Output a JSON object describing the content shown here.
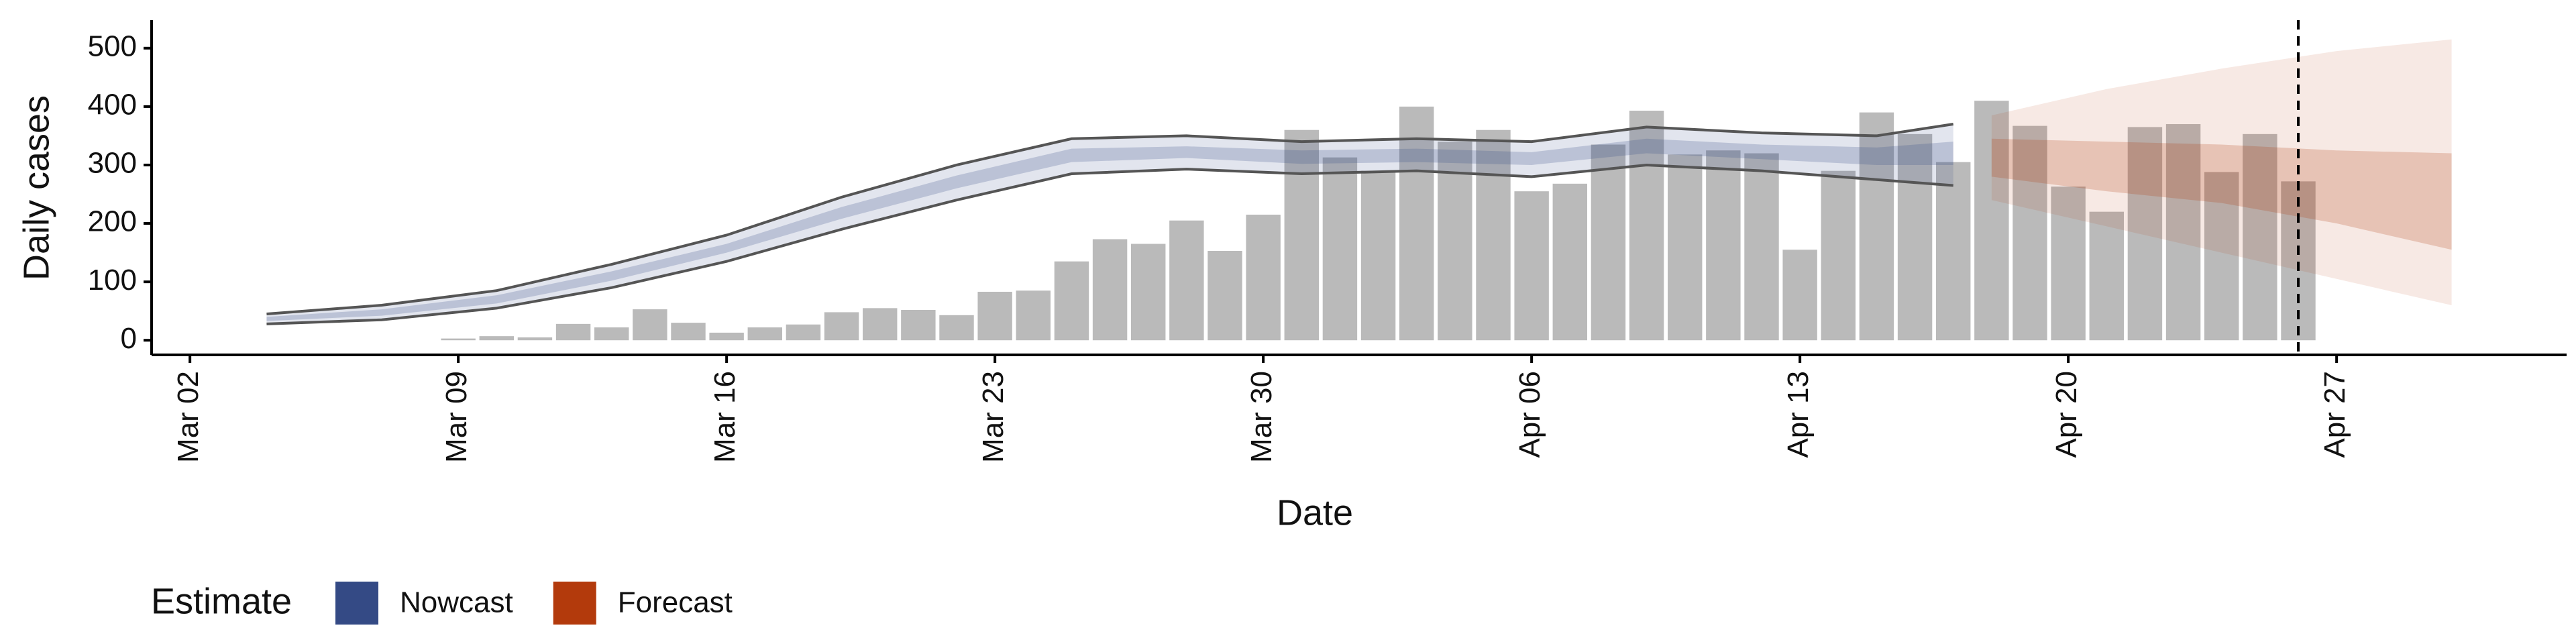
{
  "chart_data": {
    "type": "bar",
    "x_label": "Date",
    "y_label": "Daily cases",
    "xlim": [
      "03-01",
      "05-03"
    ],
    "xticks": [
      {
        "value": "03-02",
        "label": "Mar 02"
      },
      {
        "value": "03-09",
        "label": "Mar 09"
      },
      {
        "value": "03-16",
        "label": "Mar 16"
      },
      {
        "value": "03-23",
        "label": "Mar 23"
      },
      {
        "value": "03-30",
        "label": "Mar 30"
      },
      {
        "value": "04-06",
        "label": "Apr 06"
      },
      {
        "value": "04-13",
        "label": "Apr 13"
      },
      {
        "value": "04-20",
        "label": "Apr 20"
      },
      {
        "value": "04-27",
        "label": "Apr 27"
      }
    ],
    "ylim": [
      -25,
      548
    ],
    "yticks": [
      0,
      100,
      200,
      300,
      400,
      500
    ],
    "bar_color": "#bababa",
    "x": [
      "03-09",
      "03-10",
      "03-11",
      "03-12",
      "03-13",
      "03-14",
      "03-15",
      "03-16",
      "03-17",
      "03-18",
      "03-19",
      "03-20",
      "03-21",
      "03-22",
      "03-23",
      "03-24",
      "03-25",
      "03-26",
      "03-27",
      "03-28",
      "03-29",
      "03-30",
      "03-31",
      "04-01",
      "04-02",
      "04-03",
      "04-04",
      "04-05",
      "04-06",
      "04-07",
      "04-08",
      "04-09",
      "04-10",
      "04-11",
      "04-12",
      "04-13",
      "04-14",
      "04-15",
      "04-16",
      "04-17",
      "04-18",
      "04-19",
      "04-20",
      "04-21",
      "04-22",
      "04-23",
      "04-24",
      "04-25",
      "04-26"
    ],
    "values": [
      3,
      7,
      5,
      28,
      22,
      53,
      30,
      13,
      22,
      27,
      48,
      55,
      52,
      43,
      83,
      85,
      135,
      173,
      165,
      205,
      153,
      215,
      360,
      313,
      290,
      400,
      340,
      360,
      255,
      268,
      335,
      393,
      318,
      325,
      320,
      155,
      290,
      390,
      353,
      305,
      410,
      367,
      263,
      220,
      365,
      370,
      288,
      353,
      272
    ],
    "vline": "04-26",
    "legend_title": "Estimate",
    "series": [
      {
        "name": "Nowcast",
        "color": "#344a85",
        "outline": true,
        "x": [
          "03-04",
          "03-07",
          "03-10",
          "03-13",
          "03-16",
          "03-19",
          "03-22",
          "03-25",
          "03-28",
          "03-31",
          "04-03",
          "04-06",
          "04-09",
          "04-12",
          "04-15",
          "04-17"
        ],
        "lower_outer": [
          28,
          35,
          55,
          90,
          135,
          190,
          240,
          285,
          293,
          285,
          290,
          280,
          300,
          290,
          275,
          265
        ],
        "upper_outer": [
          45,
          60,
          85,
          130,
          180,
          245,
          300,
          345,
          350,
          340,
          345,
          340,
          365,
          355,
          350,
          370
        ],
        "lower_inner": [
          33,
          42,
          63,
          102,
          150,
          208,
          260,
          305,
          312,
          302,
          305,
          300,
          320,
          310,
          300,
          300
        ],
        "upper_inner": [
          40,
          53,
          77,
          118,
          165,
          228,
          282,
          328,
          332,
          325,
          328,
          322,
          345,
          335,
          330,
          340
        ]
      },
      {
        "name": "Forecast",
        "color": "#b33a0c",
        "outline": false,
        "x": [
          "04-18",
          "04-21",
          "04-24",
          "04-27",
          "04-30"
        ],
        "lower_outer": [
          240,
          195,
          150,
          105,
          60
        ],
        "upper_outer": [
          385,
          430,
          465,
          495,
          515
        ],
        "lower_inner": [
          280,
          255,
          235,
          200,
          155
        ],
        "upper_inner": [
          345,
          340,
          335,
          325,
          320
        ]
      }
    ]
  }
}
